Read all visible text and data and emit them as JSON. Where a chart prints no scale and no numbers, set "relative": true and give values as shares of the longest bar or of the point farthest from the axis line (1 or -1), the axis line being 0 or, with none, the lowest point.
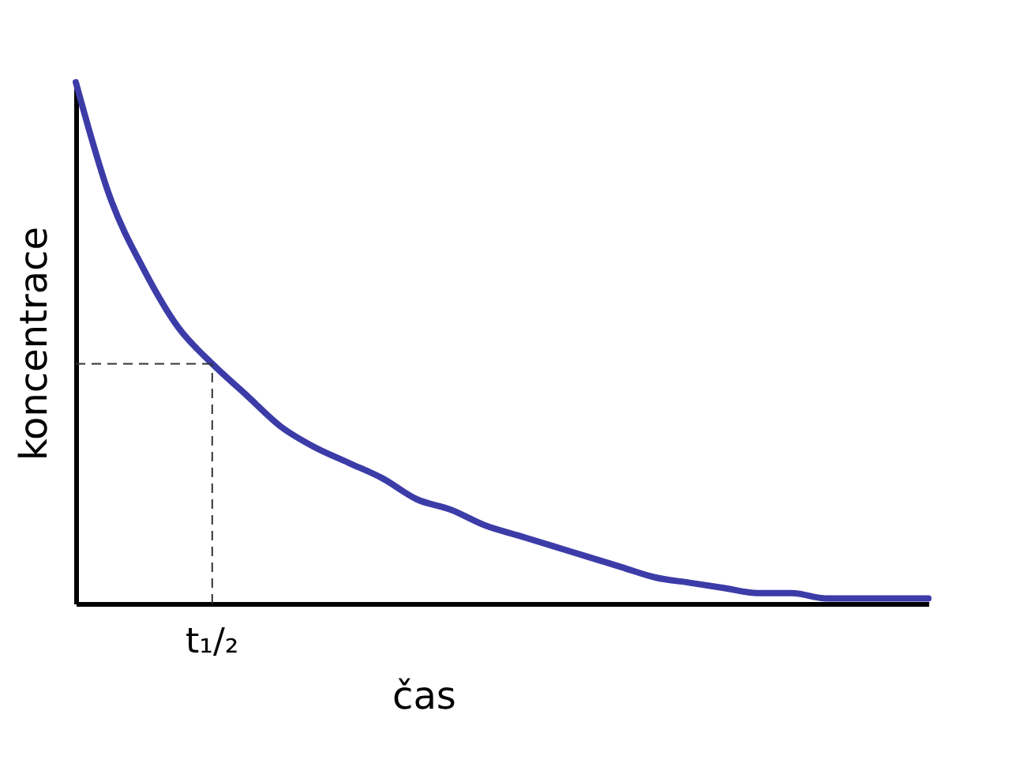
{
  "chart_data": {
    "type": "line",
    "relative": true,
    "xlabel": "čas",
    "ylabel": "koncentrace",
    "categories": [
      null,
      null,
      null,
      null,
      null,
      null,
      null,
      null,
      null,
      null,
      null,
      null,
      null,
      null,
      null,
      null,
      null,
      null,
      null,
      null,
      null,
      null,
      null,
      null,
      null,
      null
    ],
    "series": [
      {
        "color": "#3c3ca8",
        "values": [
          1.0,
          0.78,
          0.64,
          0.53,
          0.46,
          0.4,
          0.34,
          0.3,
          0.27,
          0.24,
          0.2,
          0.18,
          0.15,
          0.13,
          0.11,
          0.09,
          0.07,
          0.05,
          0.04,
          0.03,
          0.02,
          0.02,
          0.01,
          0.01,
          0.01,
          0.01
        ]
      }
    ],
    "ref_lines": [
      {
        "axis": "y",
        "value": 0.46,
        "line_style": "dashed",
        "color": "#333333",
        "label": "t₁/₂"
      }
    ],
    "tick_labels": "x",
    "grid": false,
    "marker": "none",
    "line_style": "solid"
  }
}
